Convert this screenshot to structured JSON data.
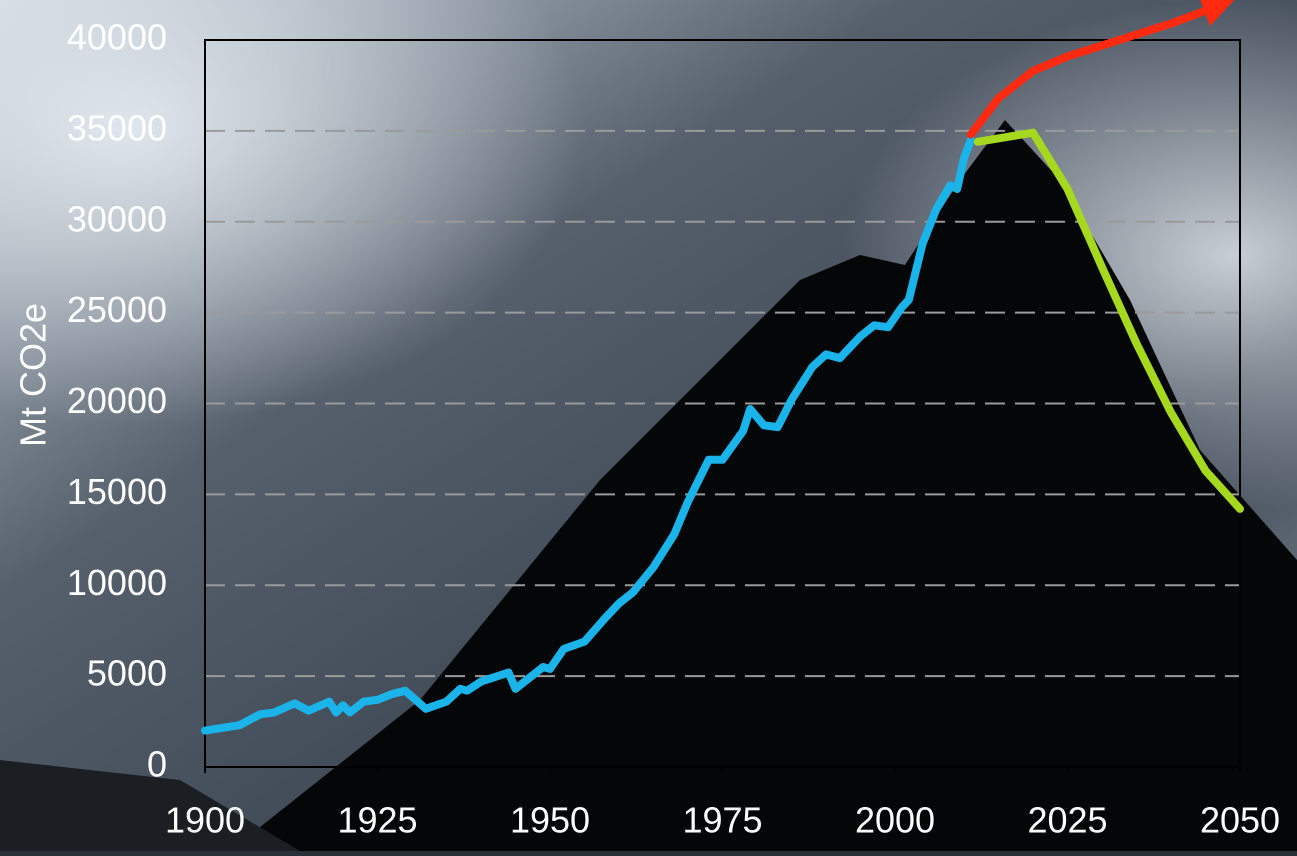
{
  "chart_data": {
    "type": "line",
    "y_label": "Mt CO2e",
    "xlim": [
      1900,
      2050
    ],
    "xticks": [
      1900,
      1925,
      1950,
      1975,
      2000,
      2025,
      2050
    ],
    "ylim": [
      0,
      40000
    ],
    "yticks": [
      0,
      5000,
      10000,
      15000,
      20000,
      25000,
      30000,
      35000,
      40000
    ],
    "grid": true,
    "series": [
      {
        "color": "#1ab4ea",
        "arrow": false,
        "x": [
          1900,
          1905,
          1908,
          1910,
          1913,
          1915,
          1918,
          1919,
          1920,
          1921,
          1923,
          1925,
          1927,
          1929,
          1932,
          1935,
          1937,
          1938,
          1940,
          1944,
          1945,
          1946,
          1949,
          1950,
          1952,
          1955,
          1958,
          1960,
          1962,
          1965,
          1968,
          1970,
          1973,
          1975,
          1978,
          1979,
          1981,
          1983,
          1985,
          1988,
          1990,
          1992,
          1995,
          1997,
          1999,
          2001,
          2002,
          2004,
          2006,
          2008,
          2009,
          2010,
          2011
        ],
        "values": [
          2000,
          2300,
          2900,
          3000,
          3500,
          3100,
          3600,
          3000,
          3400,
          3000,
          3600,
          3700,
          4000,
          4200,
          3200,
          3600,
          4300,
          4200,
          4700,
          5200,
          4300,
          4600,
          5500,
          5400,
          6500,
          6900,
          8200,
          9000,
          9600,
          11000,
          12800,
          14600,
          16900,
          16900,
          18500,
          19700,
          18800,
          18700,
          20200,
          22000,
          22700,
          22500,
          23700,
          24300,
          24200,
          25300,
          25700,
          28800,
          30700,
          32000,
          31800,
          33500,
          34500
        ]
      },
      {
        "color": "#ff2a10",
        "arrow": true,
        "x": [
          2011,
          2015,
          2020,
          2025,
          2030,
          2035,
          2040,
          2047
        ],
        "values": [
          34800,
          36800,
          38300,
          39100,
          39700,
          40300,
          40900,
          41900
        ]
      },
      {
        "color": "#a5d81e",
        "arrow": false,
        "x": [
          2012,
          2020,
          2025,
          2030,
          2035,
          2040,
          2045,
          2050
        ],
        "values": [
          34400,
          34900,
          31800,
          27500,
          23300,
          19500,
          16300,
          14200
        ]
      }
    ]
  }
}
